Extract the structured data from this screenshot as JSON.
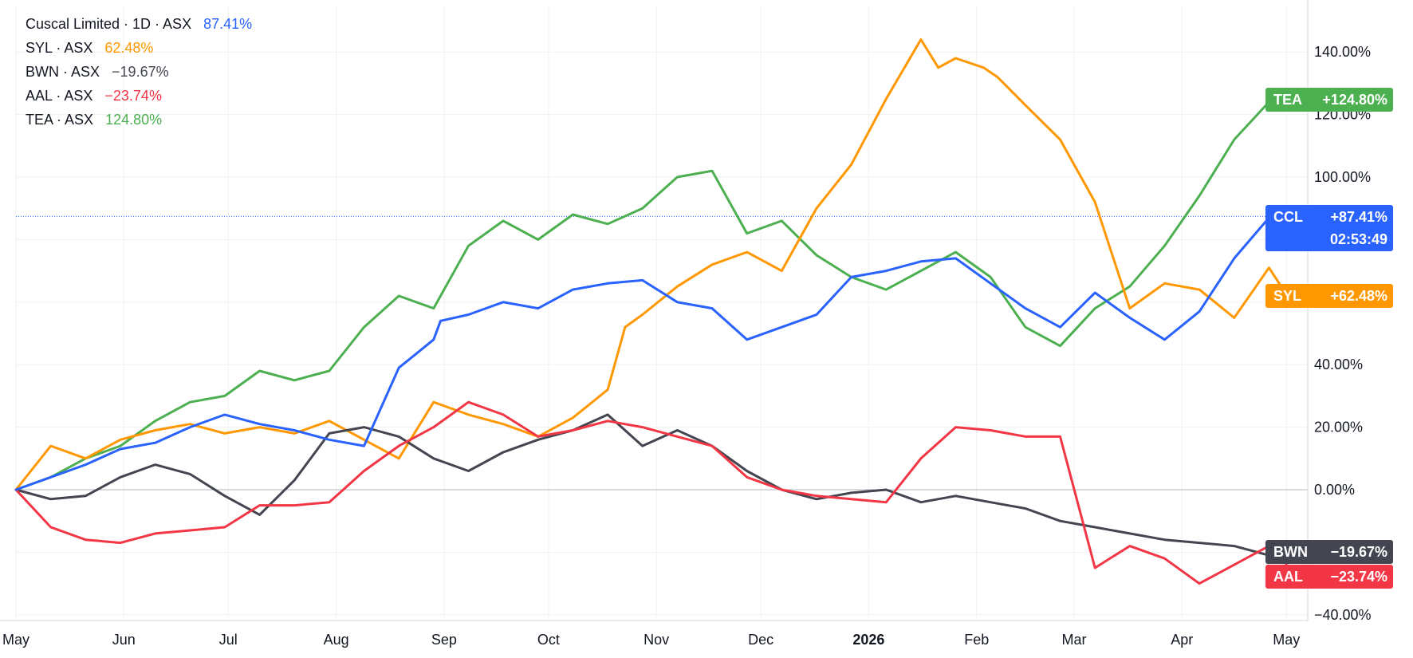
{
  "legend": {
    "main": {
      "name": "Cuscal Limited · 1D · ASX",
      "value": "87.41%"
    },
    "items": [
      {
        "name": "SYL · ASX",
        "value": "62.48%"
      },
      {
        "name": "BWN · ASX",
        "value": "−19.67%"
      },
      {
        "name": "AAL · ASX",
        "value": "−23.74%"
      },
      {
        "name": "TEA · ASX",
        "value": "124.80%"
      }
    ]
  },
  "chart_data": {
    "type": "line",
    "y_unit": "%",
    "ylim": [
      -40,
      152
    ],
    "grid": true,
    "x_ticks": [
      "May",
      "Jun",
      "Jul",
      "Aug",
      "Sep",
      "Oct",
      "Nov",
      "Dec",
      "2026",
      "Feb",
      "Mar",
      "Apr",
      "May"
    ],
    "y_ticks": [
      "140.00%",
      "120.00%",
      "100.00%",
      "80.00%",
      "60.00%",
      "40.00%",
      "20.00%",
      "0.00%",
      "−20.00%",
      "−40.00%"
    ],
    "series": [
      {
        "name": "CCL",
        "tag": "+87.41%",
        "tag2": "02:53:49",
        "color": "#2962ff",
        "x": [
          0,
          10,
          20,
          30,
          40,
          50,
          60,
          70,
          80,
          90,
          100,
          110,
          120,
          122,
          130,
          140,
          150,
          160,
          170,
          180,
          190,
          200,
          210,
          220,
          230,
          240,
          250,
          260,
          270,
          280,
          290,
          300,
          310,
          320,
          330,
          340,
          350,
          360,
          365
        ],
        "y": [
          0,
          4,
          8,
          13,
          15,
          20,
          24,
          21,
          19,
          16,
          14,
          39,
          48,
          54,
          56,
          60,
          58,
          64,
          66,
          67,
          60,
          58,
          48,
          52,
          56,
          68,
          70,
          73,
          74,
          66,
          58,
          52,
          63,
          55,
          48,
          57,
          74,
          87,
          87.41
        ]
      },
      {
        "name": "SYL",
        "tag": "+62.48%",
        "color": "#ff9800",
        "x": [
          0,
          10,
          20,
          30,
          40,
          50,
          60,
          70,
          80,
          90,
          100,
          110,
          120,
          130,
          140,
          150,
          160,
          170,
          175,
          180,
          190,
          200,
          210,
          220,
          230,
          240,
          250,
          260,
          265,
          270,
          278,
          282,
          290,
          300,
          310,
          320,
          330,
          340,
          350,
          360,
          365
        ],
        "y": [
          0,
          14,
          10,
          16,
          19,
          21,
          18,
          20,
          18,
          22,
          16,
          10,
          28,
          24,
          21,
          17,
          23,
          32,
          52,
          56,
          65,
          72,
          76,
          70,
          90,
          104,
          125,
          144,
          135,
          138,
          135,
          132,
          123,
          112,
          92,
          58,
          66,
          64,
          55,
          71,
          62.48
        ]
      },
      {
        "name": "BWN",
        "tag": "−19.67%",
        "tag2": "",
        "color": "#434651",
        "x": [
          0,
          10,
          20,
          30,
          40,
          50,
          60,
          70,
          80,
          90,
          100,
          110,
          120,
          130,
          140,
          150,
          160,
          170,
          180,
          190,
          200,
          210,
          220,
          230,
          240,
          250,
          260,
          270,
          280,
          290,
          300,
          310,
          320,
          330,
          340,
          350,
          360,
          365
        ],
        "y": [
          0,
          -3,
          -2,
          4,
          8,
          5,
          -2,
          -8,
          3,
          18,
          20,
          17,
          10,
          6,
          12,
          16,
          19,
          24,
          14,
          19,
          14,
          6,
          0,
          -3,
          -1,
          0,
          -4,
          -2,
          -4,
          -6,
          -10,
          -12,
          -14,
          -16,
          -17,
          -18,
          -21,
          -19.67
        ]
      },
      {
        "name": "AAL",
        "tag": "−23.74%",
        "color": "#f23645",
        "x": [
          0,
          10,
          20,
          30,
          40,
          50,
          60,
          70,
          80,
          90,
          100,
          110,
          120,
          130,
          140,
          150,
          160,
          170,
          180,
          190,
          200,
          210,
          220,
          230,
          240,
          250,
          260,
          270,
          280,
          290,
          300,
          310,
          320,
          330,
          340,
          350,
          360,
          365
        ],
        "y": [
          0,
          -12,
          -16,
          -17,
          -14,
          -13,
          -12,
          -5,
          -5,
          -4,
          6,
          14,
          20,
          28,
          24,
          17,
          19,
          22,
          20,
          17,
          14,
          4,
          0,
          -2,
          -3,
          -4,
          10,
          20,
          19,
          17,
          17,
          -25,
          -18,
          -22,
          -30,
          -24,
          -18,
          -23.74
        ]
      },
      {
        "name": "TEA",
        "tag": "+124.80%",
        "color": "#4caf50",
        "x": [
          0,
          10,
          20,
          30,
          40,
          50,
          60,
          70,
          80,
          90,
          100,
          110,
          120,
          130,
          140,
          150,
          160,
          170,
          180,
          190,
          200,
          210,
          220,
          230,
          240,
          250,
          260,
          270,
          280,
          290,
          300,
          310,
          320,
          330,
          340,
          350,
          360,
          365
        ],
        "y": [
          0,
          4,
          10,
          14,
          22,
          28,
          30,
          38,
          35,
          38,
          52,
          62,
          58,
          78,
          86,
          80,
          88,
          85,
          90,
          100,
          102,
          82,
          86,
          75,
          68,
          64,
          70,
          76,
          68,
          52,
          46,
          58,
          65,
          78,
          94,
          112,
          124,
          124.8
        ]
      }
    ]
  }
}
